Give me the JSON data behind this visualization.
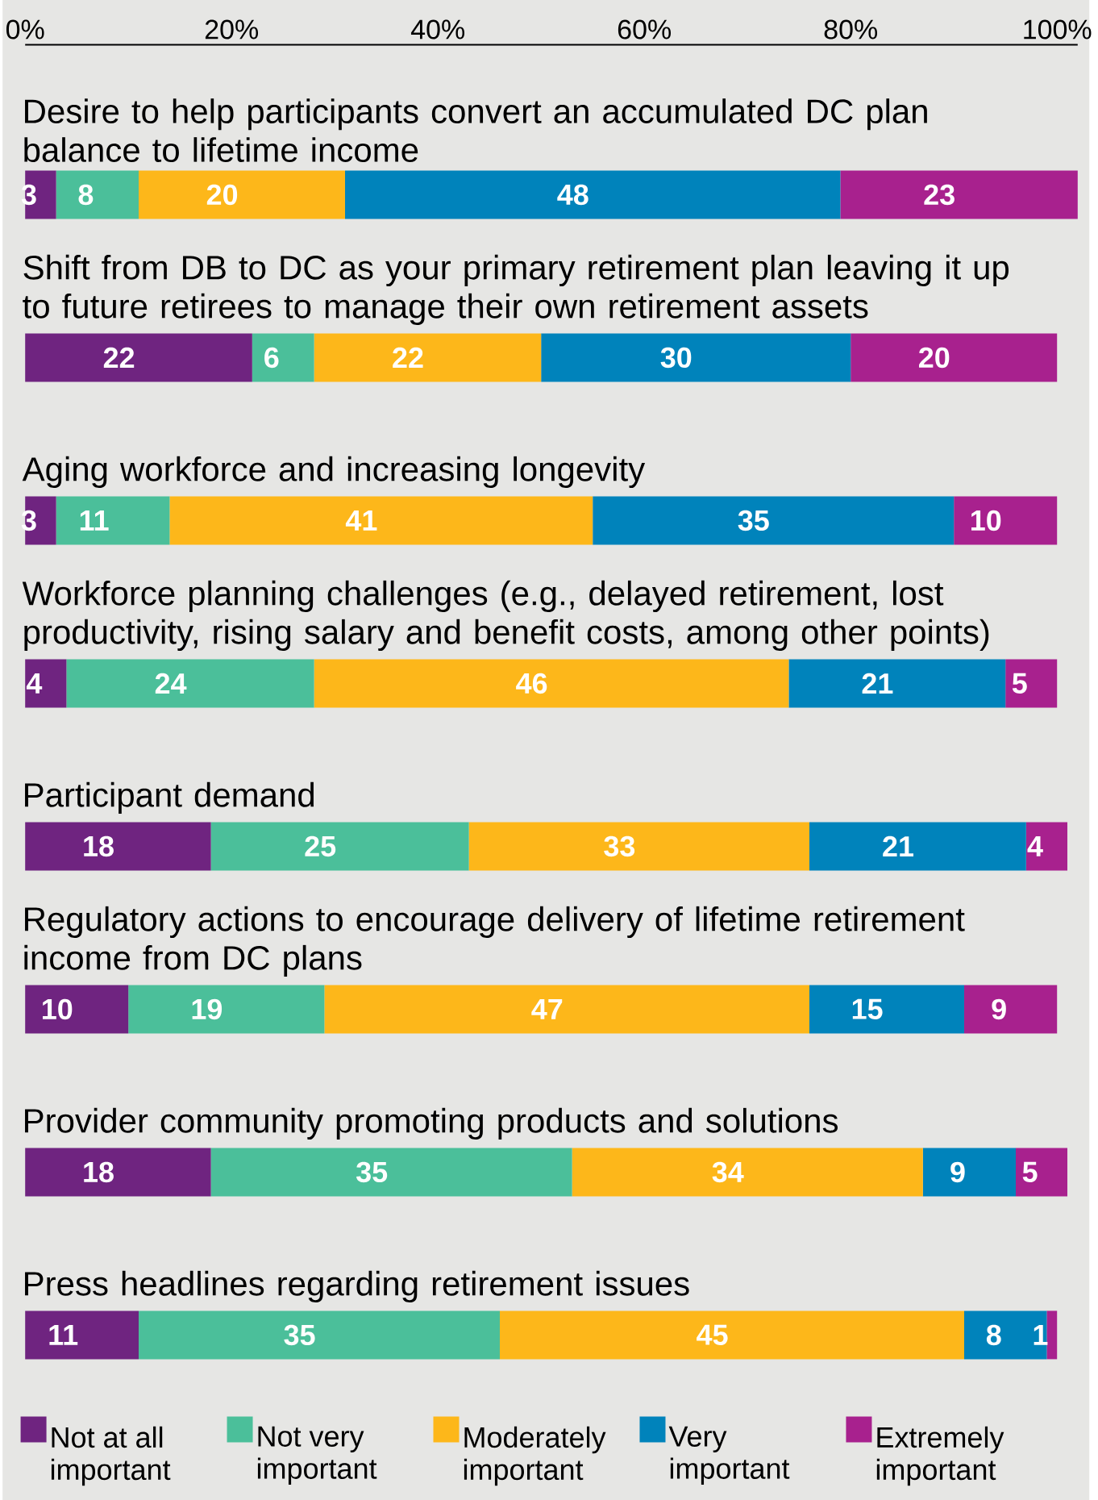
{
  "chart_data": {
    "type": "bar",
    "orientation": "horizontal",
    "stacked": true,
    "data_labels": true,
    "legend": "bottom",
    "grid": false,
    "categories": [
      "Desire to help participants convert an accumulated DC plan balance to lifetime income",
      "Shift from DB to DC as your primary retirement plan leaving it up to future retirees to manage their own retirement assets",
      "Aging workforce and increasing longevity",
      "Workforce planning challenges (e.g., delayed retirement, lost productivity, rising salary and benefit costs, among other points)",
      "Participant demand",
      "Regulatory actions to encourage delivery of lifetime retirement income from DC plans",
      "Provider community promoting products and solutions",
      "Press headlines regarding retirement issues"
    ],
    "xlim": [
      0,
      102
    ],
    "xticks": [
      {
        "value": 0,
        "label": "0%"
      },
      {
        "value": 20,
        "label": "20%"
      },
      {
        "value": 40,
        "label": "40%"
      },
      {
        "value": 60,
        "label": "60%"
      },
      {
        "value": 80,
        "label": "80%"
      },
      {
        "value": 100,
        "label": "100%"
      }
    ],
    "series": [
      {
        "name": "Not at all important",
        "color": "#6f2480",
        "values": [
          3,
          22,
          3,
          4,
          18,
          10,
          18,
          11
        ]
      },
      {
        "name": "Not very important",
        "color": "#4bbf9a",
        "values": [
          8,
          6,
          11,
          24,
          25,
          19,
          35,
          35
        ]
      },
      {
        "name": "Moderately important",
        "color": "#fdb71a",
        "values": [
          20,
          22,
          41,
          46,
          33,
          47,
          34,
          45
        ]
      },
      {
        "name": "Very important",
        "color": "#0083bb",
        "values": [
          48,
          30,
          35,
          21,
          21,
          15,
          9,
          8
        ]
      },
      {
        "name": "Extremely important",
        "color": "#a8218e",
        "values": [
          23,
          20,
          10,
          5,
          4,
          9,
          5,
          1
        ]
      }
    ]
  }
}
